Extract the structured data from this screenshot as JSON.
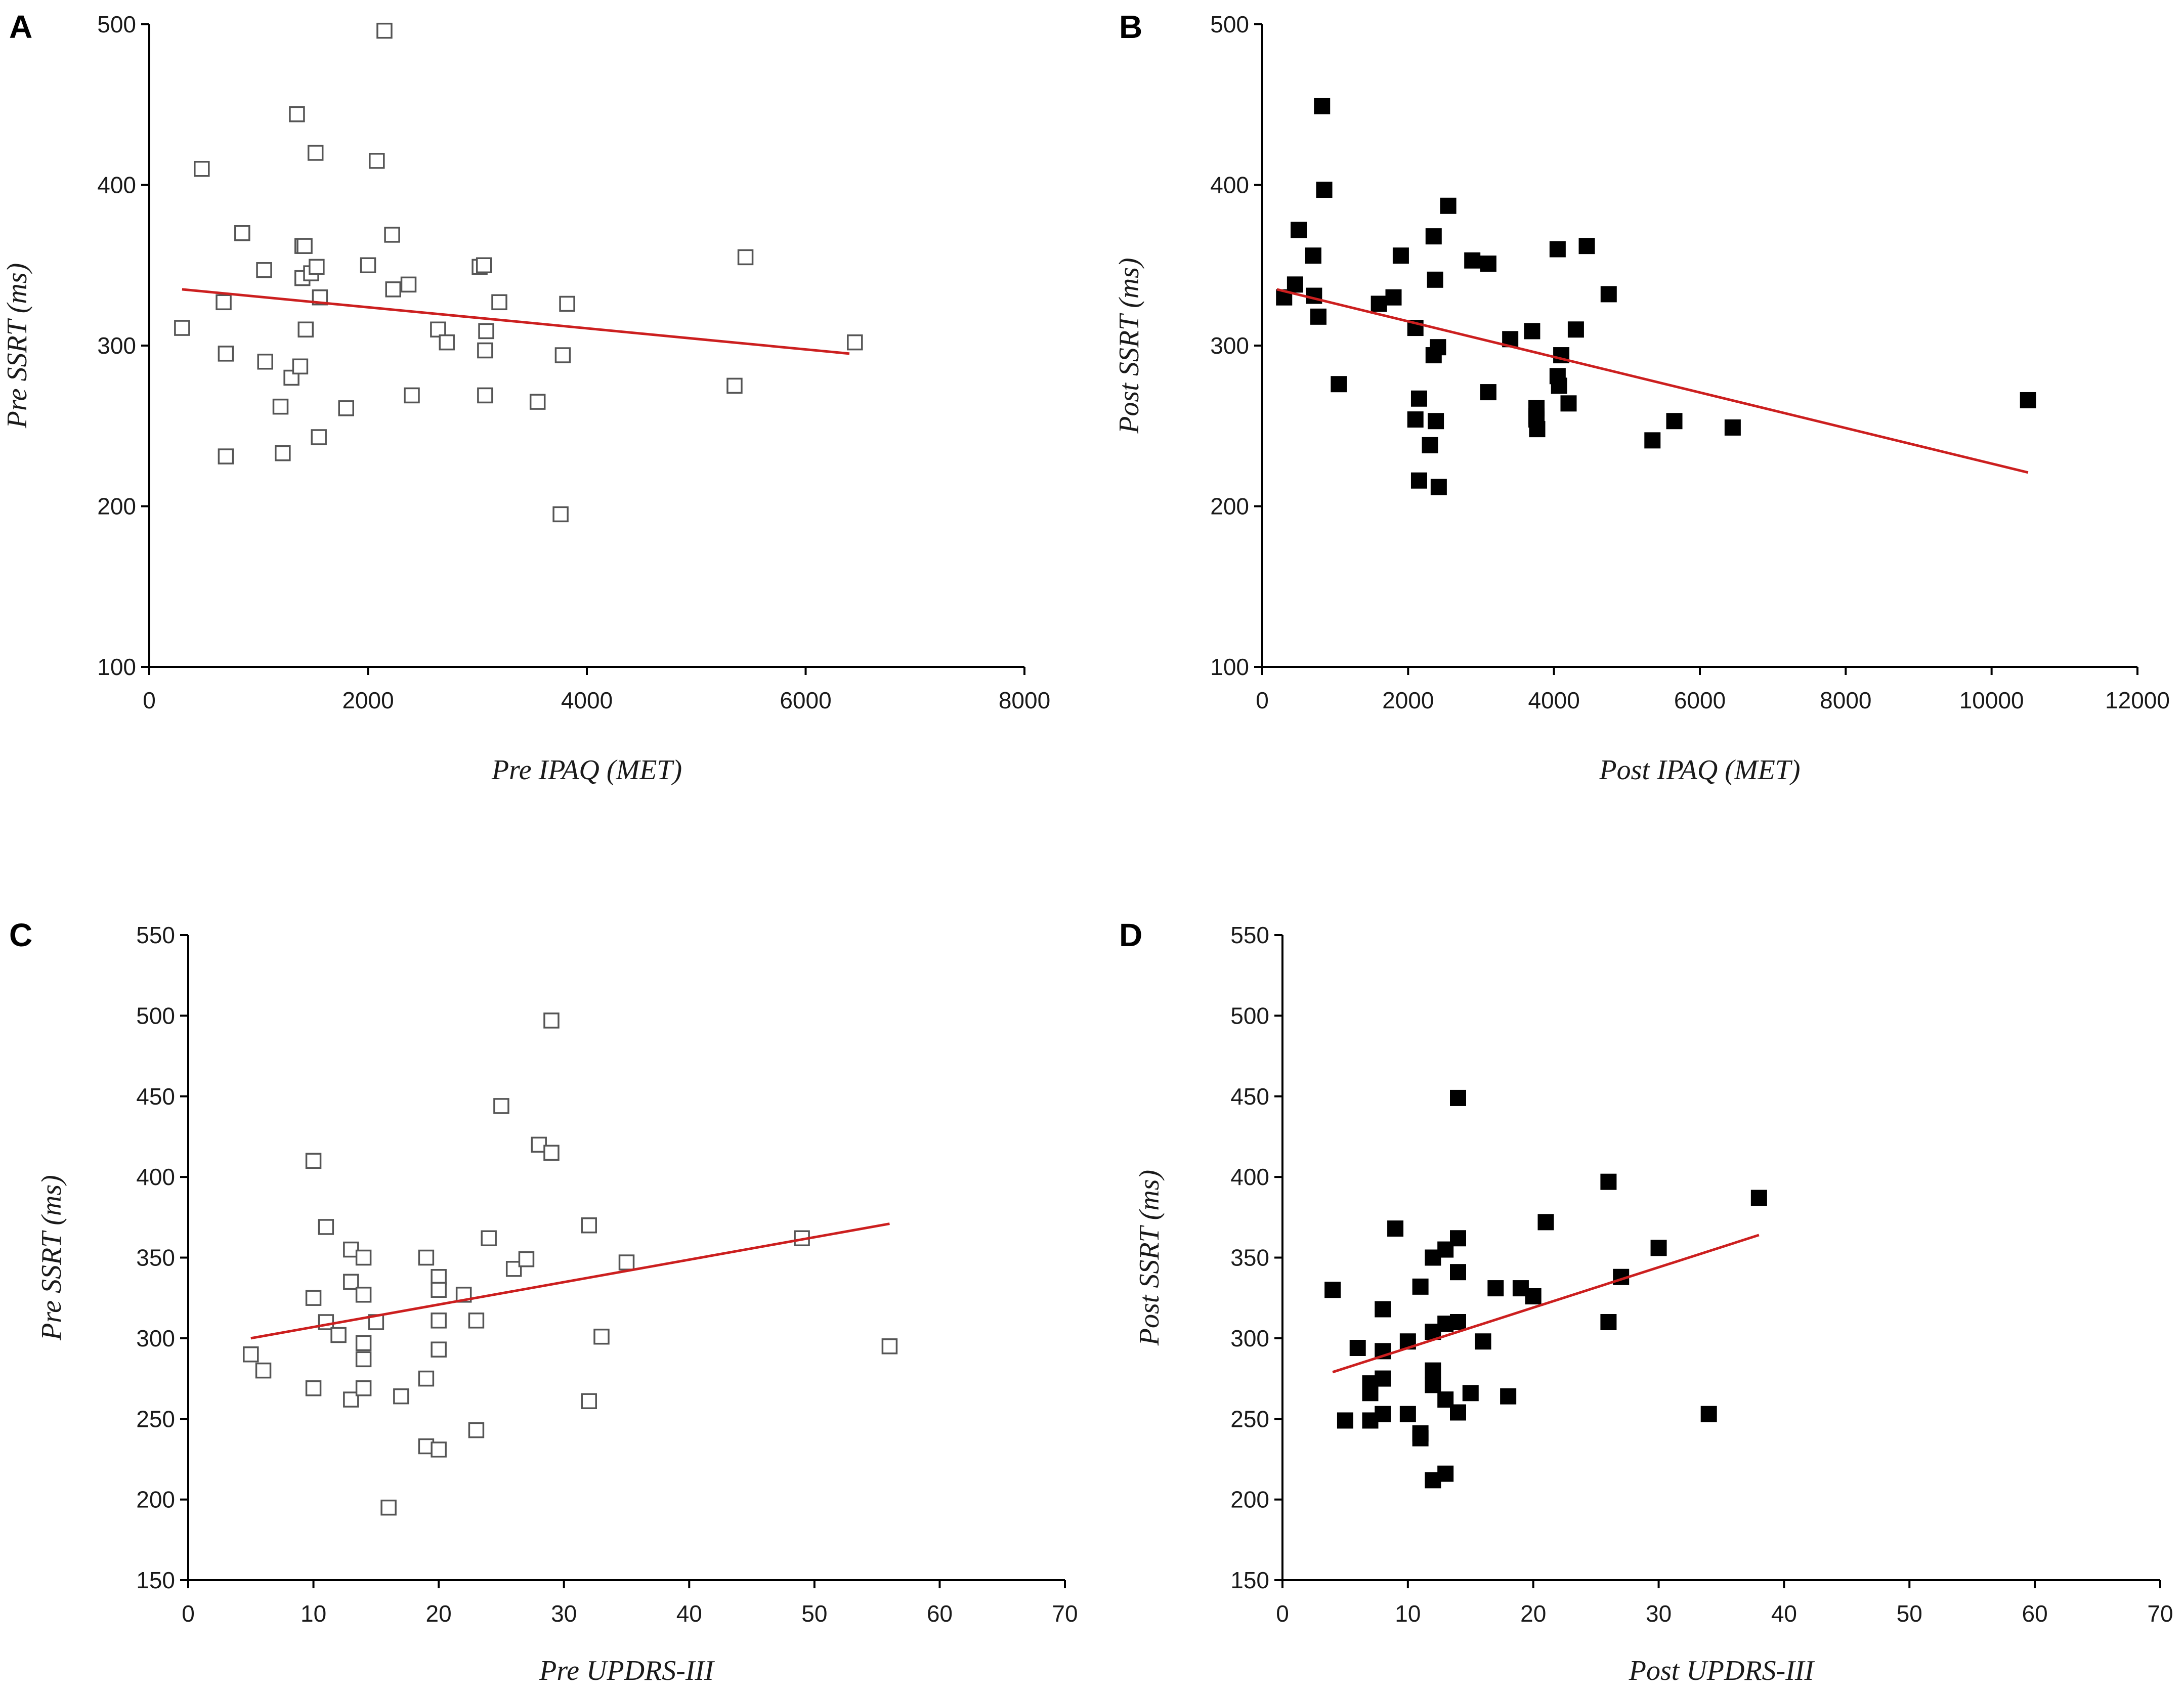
{
  "figure": {
    "colors": {
      "fit_line": "#cc1f1f",
      "open_marker_stroke": "#555555",
      "filled_marker": "#000000",
      "axis": "#000000"
    }
  },
  "chart_data": [
    {
      "panel": "A",
      "type": "scatter",
      "marker": "open-square",
      "xlabel": "Pre IPAQ (MET)",
      "ylabel": "Pre SSRT (ms)",
      "xlim": [
        0,
        8000
      ],
      "ylim": [
        100,
        500
      ],
      "xticks": [
        "0",
        "2000",
        "4000",
        "6000",
        "8000"
      ],
      "yticks": [
        "100",
        "200",
        "300",
        "400",
        "500"
      ],
      "x": [
        300,
        480,
        680,
        700,
        700,
        850,
        1050,
        1060,
        1200,
        1220,
        1300,
        1350,
        1380,
        1400,
        1400,
        1420,
        1430,
        1480,
        1520,
        1530,
        1550,
        1560,
        1800,
        2000,
        2080,
        2150,
        2220,
        2230,
        2370,
        2400,
        2640,
        2720,
        3020,
        3060,
        3070,
        3070,
        3080,
        3200,
        3550,
        3760,
        3780,
        3820,
        5350,
        5450,
        6450
      ],
      "y": [
        311,
        410,
        327,
        295,
        231,
        370,
        347,
        290,
        262,
        233,
        280,
        444,
        287,
        362,
        342,
        362,
        310,
        345,
        420,
        349,
        243,
        330,
        261,
        350,
        415,
        496,
        369,
        335,
        338,
        269,
        310,
        302,
        349,
        350,
        269,
        297,
        309,
        327,
        265,
        195,
        294,
        326,
        275,
        355,
        302
      ],
      "fit": {
        "x": [
          300,
          6400
        ],
        "y": [
          335,
          295
        ]
      }
    },
    {
      "panel": "B",
      "type": "scatter",
      "marker": "filled-square",
      "xlabel": "Post IPAQ (MET)",
      "ylabel": "Post SSRT (ms)",
      "xlim": [
        0,
        12000
      ],
      "ylim": [
        100,
        500
      ],
      "xticks": [
        "0",
        "2000",
        "4000",
        "6000",
        "8000",
        "10000",
        "12000"
      ],
      "yticks": [
        "100",
        "200",
        "300",
        "400",
        "500"
      ],
      "x": [
        300,
        450,
        500,
        700,
        710,
        770,
        820,
        850,
        1050,
        1600,
        1800,
        1900,
        2100,
        2100,
        2150,
        2150,
        2300,
        2350,
        2350,
        2370,
        2380,
        2410,
        2420,
        2550,
        2880,
        3100,
        3100,
        3400,
        3700,
        3760,
        3760,
        3760,
        3770,
        4050,
        4050,
        4070,
        4100,
        4200,
        4300,
        4450,
        4750,
        5350,
        5650,
        6450,
        10500
      ],
      "y": [
        330,
        338,
        372,
        356,
        331,
        318,
        449,
        397,
        276,
        326,
        330,
        356,
        254,
        311,
        267,
        216,
        238,
        368,
        294,
        341,
        253,
        299,
        212,
        387,
        353,
        351,
        271,
        304,
        309,
        261,
        256,
        254,
        248,
        360,
        281,
        275,
        294,
        264,
        310,
        362,
        332,
        241,
        253,
        249,
        266
      ],
      "fit": {
        "x": [
          200,
          10500
        ],
        "y": [
          335,
          221
        ]
      }
    },
    {
      "panel": "C",
      "type": "scatter",
      "marker": "open-square",
      "xlabel": "Pre UPDRS-III",
      "ylabel": "Pre SSRT (ms)",
      "xlim": [
        0,
        70
      ],
      "ylim": [
        150,
        550
      ],
      "xticks": [
        "0",
        "10",
        "20",
        "30",
        "40",
        "50",
        "60",
        "70"
      ],
      "yticks": [
        "150",
        "200",
        "250",
        "300",
        "350",
        "400",
        "450",
        "500",
        "550"
      ],
      "x": [
        5,
        6,
        10,
        10,
        10,
        11,
        11,
        12,
        13,
        13,
        13,
        14,
        14,
        14,
        14,
        14,
        15,
        16,
        17,
        19,
        19,
        19,
        20,
        20,
        20,
        20,
        20,
        22,
        23,
        23,
        24,
        25,
        26,
        27,
        28,
        29,
        29,
        32,
        32,
        33,
        35,
        49,
        56
      ],
      "y": [
        290,
        280,
        410,
        325,
        269,
        369,
        310,
        302,
        355,
        335,
        262,
        350,
        327,
        297,
        287,
        269,
        310,
        195,
        264,
        350,
        275,
        233,
        338,
        330,
        311,
        293,
        231,
        327,
        243,
        311,
        362,
        444,
        343,
        349,
        420,
        497,
        415,
        370,
        261,
        301,
        347,
        362,
        295
      ],
      "fit": {
        "x": [
          5,
          56
        ],
        "y": [
          300,
          371
        ]
      }
    },
    {
      "panel": "D",
      "type": "scatter",
      "marker": "filled-square",
      "xlabel": "Post UPDRS-III",
      "ylabel": "Post SSRT (ms)",
      "xlim": [
        0,
        70
      ],
      "ylim": [
        150,
        550
      ],
      "xticks": [
        "0",
        "10",
        "20",
        "30",
        "40",
        "50",
        "60",
        "70"
      ],
      "yticks": [
        "150",
        "200",
        "250",
        "300",
        "350",
        "400",
        "450",
        "500",
        "550"
      ],
      "x": [
        4,
        5,
        6,
        7,
        7,
        7,
        8,
        8,
        8,
        8,
        9,
        10,
        10,
        11,
        11,
        11,
        12,
        12,
        12,
        12,
        12,
        13,
        13,
        13,
        13,
        14,
        14,
        14,
        14,
        14,
        15,
        16,
        17,
        18,
        19,
        20,
        21,
        26,
        26,
        27,
        30,
        34,
        38
      ],
      "y": [
        330,
        249,
        294,
        266,
        272,
        249,
        318,
        292,
        275,
        253,
        368,
        298,
        253,
        332,
        241,
        238,
        350,
        280,
        304,
        271,
        212,
        355,
        309,
        262,
        216,
        449,
        362,
        341,
        310,
        254,
        266,
        298,
        331,
        264,
        331,
        326,
        372,
        397,
        310,
        338,
        356,
        253,
        387
      ],
      "fit": {
        "x": [
          4,
          38
        ],
        "y": [
          279,
          364
        ]
      }
    }
  ]
}
